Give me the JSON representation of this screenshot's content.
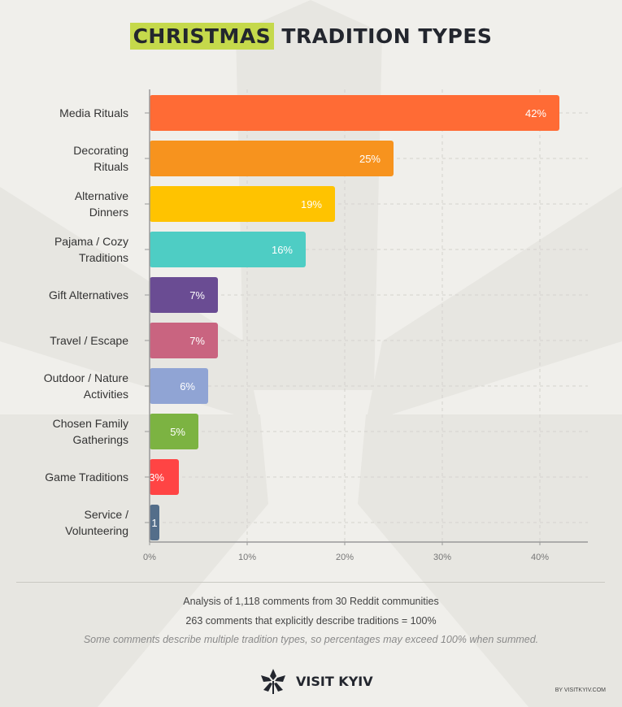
{
  "title": {
    "highlight": "CHRISTMAS",
    "rest": "TRADITION TYPES"
  },
  "chart_data": {
    "type": "bar",
    "orientation": "horizontal",
    "categories": [
      "Media Rituals",
      "Decorating Rituals",
      "Alternative Dinners",
      "Pajama / Cozy Traditions",
      "Gift Alternatives",
      "Travel / Escape",
      "Outdoor / Nature Activities",
      "Chosen Family Gatherings",
      "Game Traditions",
      "Service / Volunteering"
    ],
    "label_lines": [
      [
        "Media Rituals"
      ],
      [
        "Decorating",
        "Rituals"
      ],
      [
        "Alternative",
        "Dinners"
      ],
      [
        "Pajama / Cozy",
        "Traditions"
      ],
      [
        "Gift Alternatives"
      ],
      [
        "Travel / Escape"
      ],
      [
        "Outdoor / Nature",
        "Activities"
      ],
      [
        "Chosen Family",
        "Gatherings"
      ],
      [
        "Game Traditions"
      ],
      [
        "Service /",
        "Volunteering"
      ]
    ],
    "values": [
      42,
      25,
      19,
      16,
      7,
      7,
      6,
      5,
      3,
      1
    ],
    "data_labels": [
      "42%",
      "25%",
      "19%",
      "16%",
      "7%",
      "7%",
      "6%",
      "5%",
      "3%",
      "1"
    ],
    "colors": [
      "#ff6b35",
      "#f7931e",
      "#ffc300",
      "#4ecdc4",
      "#6a4c93",
      "#c96480",
      "#90a4d4",
      "#7cb342",
      "#ff4444",
      "#546e8a"
    ],
    "xlim": [
      0,
      45
    ],
    "xticks": [
      "0%",
      "10%",
      "20%",
      "30%",
      "40%"
    ],
    "xtick_values": [
      0,
      10,
      20,
      30,
      40
    ],
    "grid": true
  },
  "footer": {
    "line1": "Analysis of 1,118 comments from 30 Reddit communities",
    "line2": "263 comments that explicitly describe traditions = 100%",
    "note": "Some comments describe multiple tradition types, so percentages may exceed 100% when summed.",
    "brand": "VISIT KYIV",
    "credit": "BY VISITKYIV.COM"
  }
}
